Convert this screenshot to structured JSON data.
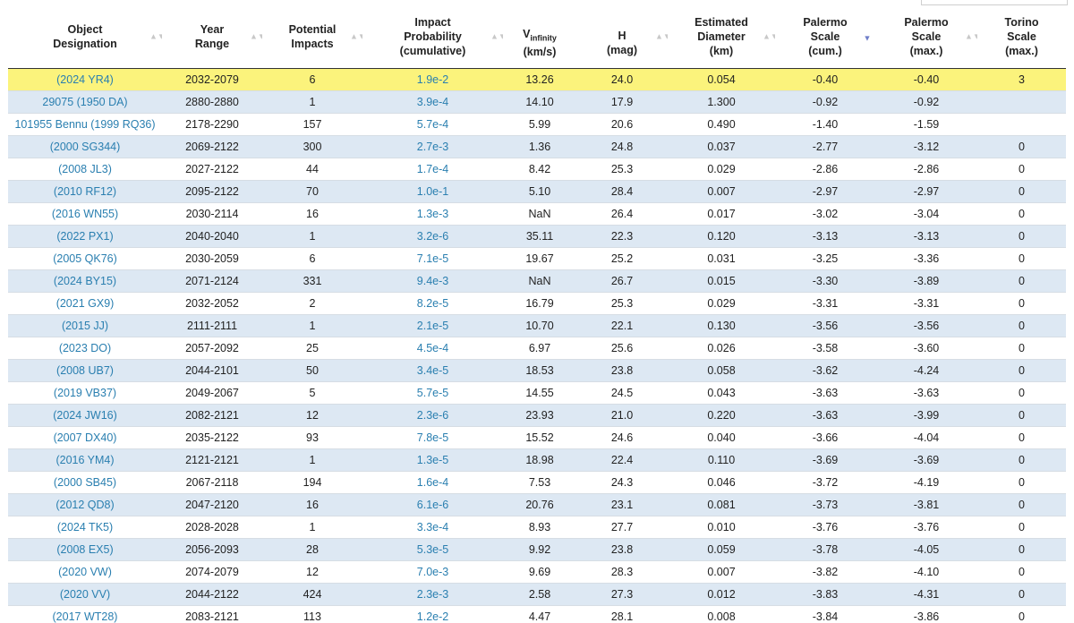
{
  "headers": [
    {
      "line1": "Object",
      "line2": "Designation",
      "line3": ""
    },
    {
      "line1": "Year",
      "line2": "Range",
      "line3": ""
    },
    {
      "line1": "Potential",
      "line2": "Impacts",
      "line3": ""
    },
    {
      "line1": "Impact",
      "line2": "Probability",
      "line3": "(cumulative)"
    },
    {
      "main": "V",
      "sub": "infinity",
      "line2": "(km/s)"
    },
    {
      "line1": "H",
      "line2": "(mag)"
    },
    {
      "line1": "Estimated",
      "line2": "Diameter",
      "line3": "(km)"
    },
    {
      "line1": "Palermo",
      "line2": "Scale",
      "line3": "(cum.)"
    },
    {
      "line1": "Palermo",
      "line2": "Scale",
      "line3": "(max.)"
    },
    {
      "line1": "Torino",
      "line2": "Scale",
      "line3": "(max.)"
    }
  ],
  "sort_icons": {
    "neutral": "▲▼",
    "active_desc": "▼"
  },
  "rows": [
    {
      "designation": "(2024 YR4)",
      "years": "2032-2079",
      "impacts": "6",
      "probability": "1.9e-2",
      "vinf": "13.26",
      "h": "24.0",
      "diameter": "0.054",
      "ps_cum": "-0.40",
      "ps_max": "-0.40",
      "torino": "3"
    },
    {
      "designation": "29075 (1950 DA)",
      "years": "2880-2880",
      "impacts": "1",
      "probability": "3.9e-4",
      "vinf": "14.10",
      "h": "17.9",
      "diameter": "1.300",
      "ps_cum": "-0.92",
      "ps_max": "-0.92",
      "torino": ""
    },
    {
      "designation": "101955 Bennu (1999 RQ36)",
      "years": "2178-2290",
      "impacts": "157",
      "probability": "5.7e-4",
      "vinf": "5.99",
      "h": "20.6",
      "diameter": "0.490",
      "ps_cum": "-1.40",
      "ps_max": "-1.59",
      "torino": ""
    },
    {
      "designation": "(2000 SG344)",
      "years": "2069-2122",
      "impacts": "300",
      "probability": "2.7e-3",
      "vinf": "1.36",
      "h": "24.8",
      "diameter": "0.037",
      "ps_cum": "-2.77",
      "ps_max": "-3.12",
      "torino": "0"
    },
    {
      "designation": "(2008 JL3)",
      "years": "2027-2122",
      "impacts": "44",
      "probability": "1.7e-4",
      "vinf": "8.42",
      "h": "25.3",
      "diameter": "0.029",
      "ps_cum": "-2.86",
      "ps_max": "-2.86",
      "torino": "0"
    },
    {
      "designation": "(2010 RF12)",
      "years": "2095-2122",
      "impacts": "70",
      "probability": "1.0e-1",
      "vinf": "5.10",
      "h": "28.4",
      "diameter": "0.007",
      "ps_cum": "-2.97",
      "ps_max": "-2.97",
      "torino": "0"
    },
    {
      "designation": "(2016 WN55)",
      "years": "2030-2114",
      "impacts": "16",
      "probability": "1.3e-3",
      "vinf": "NaN",
      "h": "26.4",
      "diameter": "0.017",
      "ps_cum": "-3.02",
      "ps_max": "-3.04",
      "torino": "0"
    },
    {
      "designation": "(2022 PX1)",
      "years": "2040-2040",
      "impacts": "1",
      "probability": "3.2e-6",
      "vinf": "35.11",
      "h": "22.3",
      "diameter": "0.120",
      "ps_cum": "-3.13",
      "ps_max": "-3.13",
      "torino": "0"
    },
    {
      "designation": "(2005 QK76)",
      "years": "2030-2059",
      "impacts": "6",
      "probability": "7.1e-5",
      "vinf": "19.67",
      "h": "25.2",
      "diameter": "0.031",
      "ps_cum": "-3.25",
      "ps_max": "-3.36",
      "torino": "0"
    },
    {
      "designation": "(2024 BY15)",
      "years": "2071-2124",
      "impacts": "331",
      "probability": "9.4e-3",
      "vinf": "NaN",
      "h": "26.7",
      "diameter": "0.015",
      "ps_cum": "-3.30",
      "ps_max": "-3.89",
      "torino": "0"
    },
    {
      "designation": "(2021 GX9)",
      "years": "2032-2052",
      "impacts": "2",
      "probability": "8.2e-5",
      "vinf": "16.79",
      "h": "25.3",
      "diameter": "0.029",
      "ps_cum": "-3.31",
      "ps_max": "-3.31",
      "torino": "0"
    },
    {
      "designation": "(2015 JJ)",
      "years": "2111-2111",
      "impacts": "1",
      "probability": "2.1e-5",
      "vinf": "10.70",
      "h": "22.1",
      "diameter": "0.130",
      "ps_cum": "-3.56",
      "ps_max": "-3.56",
      "torino": "0"
    },
    {
      "designation": "(2023 DO)",
      "years": "2057-2092",
      "impacts": "25",
      "probability": "4.5e-4",
      "vinf": "6.97",
      "h": "25.6",
      "diameter": "0.026",
      "ps_cum": "-3.58",
      "ps_max": "-3.60",
      "torino": "0"
    },
    {
      "designation": "(2008 UB7)",
      "years": "2044-2101",
      "impacts": "50",
      "probability": "3.4e-5",
      "vinf": "18.53",
      "h": "23.8",
      "diameter": "0.058",
      "ps_cum": "-3.62",
      "ps_max": "-4.24",
      "torino": "0"
    },
    {
      "designation": "(2019 VB37)",
      "years": "2049-2067",
      "impacts": "5",
      "probability": "5.7e-5",
      "vinf": "14.55",
      "h": "24.5",
      "diameter": "0.043",
      "ps_cum": "-3.63",
      "ps_max": "-3.63",
      "torino": "0"
    },
    {
      "designation": "(2024 JW16)",
      "years": "2082-2121",
      "impacts": "12",
      "probability": "2.3e-6",
      "vinf": "23.93",
      "h": "21.0",
      "diameter": "0.220",
      "ps_cum": "-3.63",
      "ps_max": "-3.99",
      "torino": "0"
    },
    {
      "designation": "(2007 DX40)",
      "years": "2035-2122",
      "impacts": "93",
      "probability": "7.8e-5",
      "vinf": "15.52",
      "h": "24.6",
      "diameter": "0.040",
      "ps_cum": "-3.66",
      "ps_max": "-4.04",
      "torino": "0"
    },
    {
      "designation": "(2016 YM4)",
      "years": "2121-2121",
      "impacts": "1",
      "probability": "1.3e-5",
      "vinf": "18.98",
      "h": "22.4",
      "diameter": "0.110",
      "ps_cum": "-3.69",
      "ps_max": "-3.69",
      "torino": "0"
    },
    {
      "designation": "(2000 SB45)",
      "years": "2067-2118",
      "impacts": "194",
      "probability": "1.6e-4",
      "vinf": "7.53",
      "h": "24.3",
      "diameter": "0.046",
      "ps_cum": "-3.72",
      "ps_max": "-4.19",
      "torino": "0"
    },
    {
      "designation": "(2012 QD8)",
      "years": "2047-2120",
      "impacts": "16",
      "probability": "6.1e-6",
      "vinf": "20.76",
      "h": "23.1",
      "diameter": "0.081",
      "ps_cum": "-3.73",
      "ps_max": "-3.81",
      "torino": "0"
    },
    {
      "designation": "(2024 TK5)",
      "years": "2028-2028",
      "impacts": "1",
      "probability": "3.3e-4",
      "vinf": "8.93",
      "h": "27.7",
      "diameter": "0.010",
      "ps_cum": "-3.76",
      "ps_max": "-3.76",
      "torino": "0"
    },
    {
      "designation": "(2008 EX5)",
      "years": "2056-2093",
      "impacts": "28",
      "probability": "5.3e-5",
      "vinf": "9.92",
      "h": "23.8",
      "diameter": "0.059",
      "ps_cum": "-3.78",
      "ps_max": "-4.05",
      "torino": "0"
    },
    {
      "designation": "(2020 VW)",
      "years": "2074-2079",
      "impacts": "12",
      "probability": "7.0e-3",
      "vinf": "9.69",
      "h": "28.3",
      "diameter": "0.007",
      "ps_cum": "-3.82",
      "ps_max": "-4.10",
      "torino": "0"
    },
    {
      "designation": "(2020 VV)",
      "years": "2044-2122",
      "impacts": "424",
      "probability": "2.3e-3",
      "vinf": "2.58",
      "h": "27.3",
      "diameter": "0.012",
      "ps_cum": "-3.83",
      "ps_max": "-4.31",
      "torino": "0"
    },
    {
      "designation": "(2017 WT28)",
      "years": "2083-2121",
      "impacts": "113",
      "probability": "1.2e-2",
      "vinf": "4.47",
      "h": "28.1",
      "diameter": "0.008",
      "ps_cum": "-3.84",
      "ps_max": "-3.86",
      "torino": "0"
    }
  ],
  "colors": {
    "link": "#2a7fb0",
    "highlight_row": "#fbf37c",
    "stripe_row": "#dde8f3",
    "sort_active": "#6f7ec9"
  }
}
